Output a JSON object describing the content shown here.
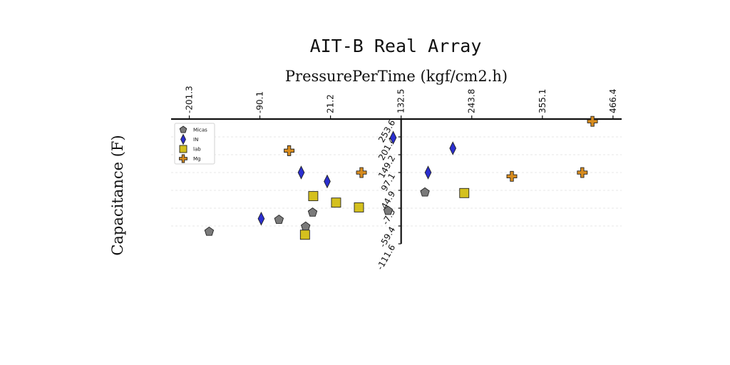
{
  "chart_data": {
    "type": "scatter",
    "title": "AIT-B Real Array",
    "xlabel": "PressurePerTime (kgf/cm2.h)",
    "ylabel": "Capacitance (F)",
    "xlim": [
      -230,
      480
    ],
    "ylim": [
      -111.6,
      253.6
    ],
    "x_ticks": [
      "-201.3",
      "-90.1",
      "21.2",
      "132.5",
      "243.8",
      "355.1",
      "466.4"
    ],
    "y_ticks": [
      "253.6",
      "201.4",
      "149.2",
      "97.1",
      "44.9",
      "-7.3",
      "-59.4",
      "-111.6"
    ],
    "x_axis_position": "top",
    "y_axis_crosses_x_at": 132.5,
    "grid": "horizontal dashed",
    "legend_position": "top-left",
    "series": [
      {
        "name": "Micas",
        "marker": "pentagon",
        "color": "#7a7a7a",
        "points": [
          {
            "x": -170,
            "y": -76
          },
          {
            "x": -60,
            "y": -41
          },
          {
            "x": -18,
            "y": -61
          },
          {
            "x": -7,
            "y": -20
          },
          {
            "x": 112,
            "y": -15
          },
          {
            "x": 170,
            "y": 39
          }
        ]
      },
      {
        "name": "IN",
        "marker": "diamond",
        "color": "#2b2fd0",
        "points": [
          {
            "x": -88,
            "y": -38
          },
          {
            "x": -25,
            "y": 97
          },
          {
            "x": 16,
            "y": 71
          },
          {
            "x": 120,
            "y": 199
          },
          {
            "x": 175,
            "y": 97
          },
          {
            "x": 214,
            "y": 168
          }
        ]
      },
      {
        "name": "lab",
        "marker": "square",
        "color": "#d4c01e",
        "points": [
          {
            "x": -19,
            "y": -85
          },
          {
            "x": -6,
            "y": 28
          },
          {
            "x": 30,
            "y": 9
          },
          {
            "x": 66,
            "y": -5
          },
          {
            "x": 232,
            "y": 37
          }
        ]
      },
      {
        "name": "Mg",
        "marker": "plus",
        "color": "#d88c1e",
        "points": [
          {
            "x": -44,
            "y": 161
          },
          {
            "x": 70,
            "y": 97
          },
          {
            "x": 307,
            "y": 86
          },
          {
            "x": 418,
            "y": 97
          },
          {
            "x": 434,
            "y": 247
          }
        ]
      }
    ]
  }
}
